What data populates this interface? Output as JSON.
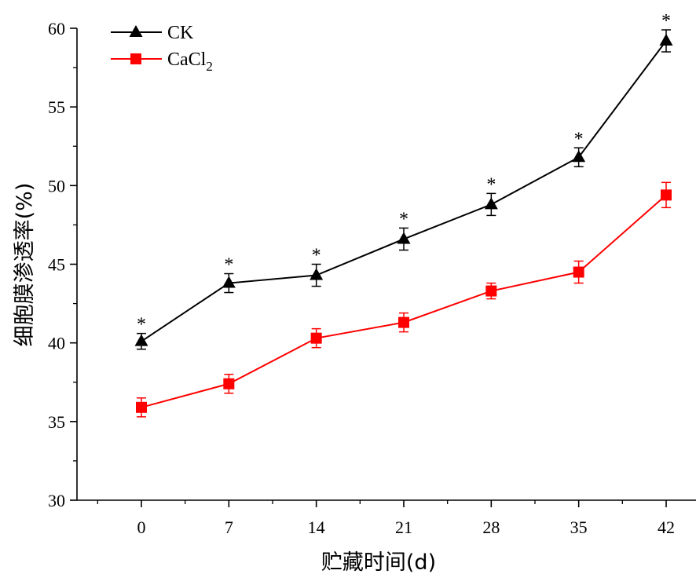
{
  "chart_data": {
    "type": "line",
    "xlabel": "贮藏时间(d)",
    "ylabel": "细胞膜渗透率(%)",
    "x": [
      0,
      7,
      14,
      21,
      28,
      35,
      42
    ],
    "x_tick_labels": [
      "0",
      "7",
      "14",
      "21",
      "28",
      "35",
      "42"
    ],
    "ylim": [
      30,
      60
    ],
    "y_ticks": [
      30,
      35,
      40,
      45,
      50,
      55,
      60
    ],
    "y_tick_labels": [
      "30",
      "35",
      "40",
      "45",
      "50",
      "55",
      "60"
    ],
    "grid": false,
    "legend_position": "top-left",
    "series": [
      {
        "name": "CK",
        "legend_main": "CK",
        "legend_sub": "",
        "color": "#000000",
        "marker": "triangle",
        "values": [
          40.1,
          43.8,
          44.3,
          46.6,
          48.8,
          51.8,
          59.2
        ],
        "errors": [
          0.5,
          0.6,
          0.7,
          0.7,
          0.7,
          0.6,
          0.7
        ],
        "significance": [
          "*",
          "*",
          "*",
          "*",
          "*",
          "*",
          "*"
        ]
      },
      {
        "name": "CaCl2",
        "legend_main": "CaCl",
        "legend_sub": "2",
        "color": "#ff0000",
        "marker": "square",
        "values": [
          35.9,
          37.4,
          40.3,
          41.3,
          43.3,
          44.5,
          49.4
        ],
        "errors": [
          0.6,
          0.6,
          0.6,
          0.6,
          0.5,
          0.7,
          0.8
        ],
        "significance": [
          "",
          "",
          "",
          "",
          "",
          "",
          ""
        ]
      }
    ]
  }
}
